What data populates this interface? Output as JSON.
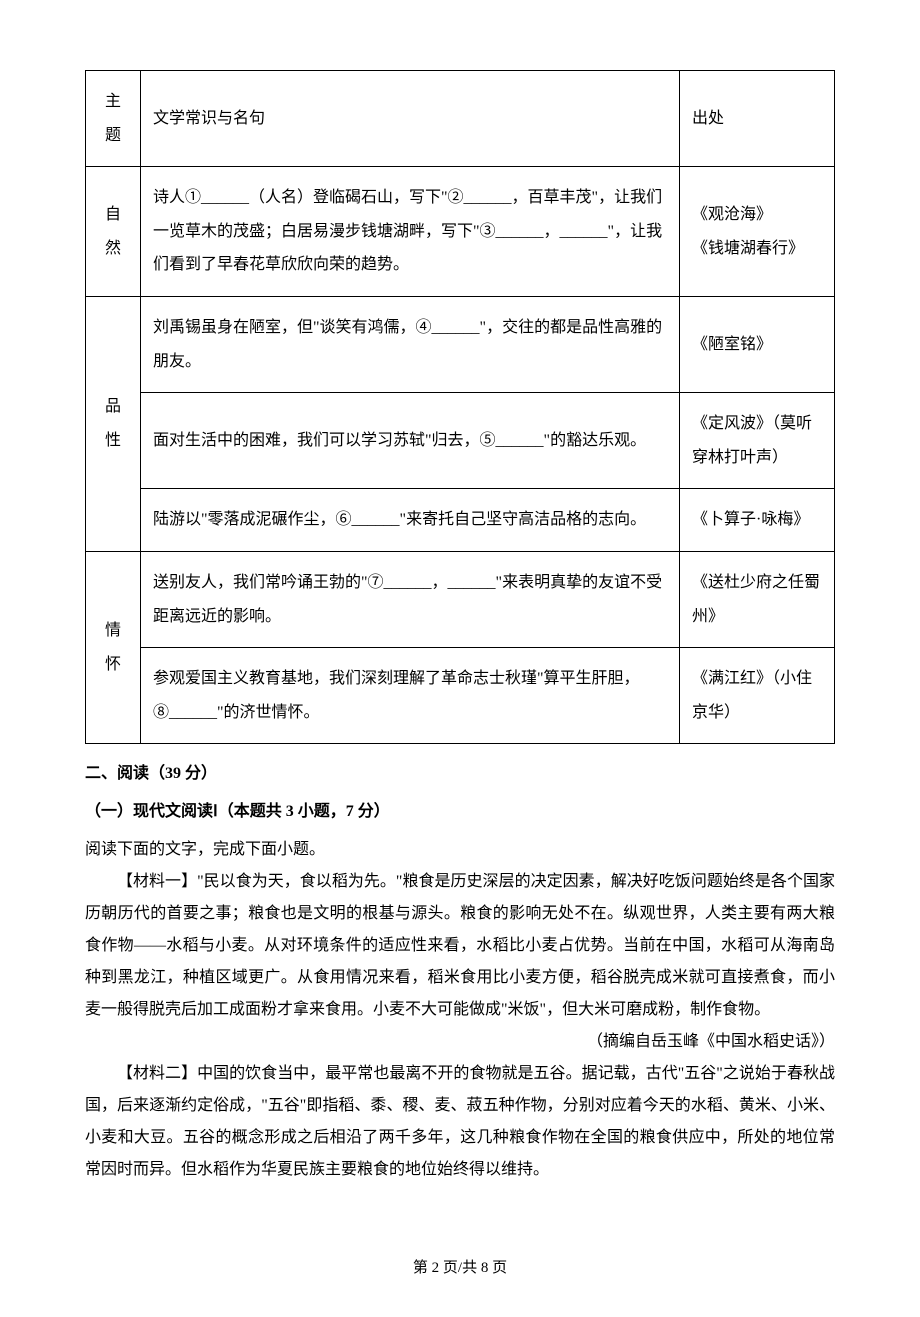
{
  "table": {
    "headers": {
      "theme": "主题",
      "content": "文学常识与名句",
      "source": "出处"
    },
    "groups": [
      {
        "theme": "自然",
        "rows": [
          {
            "content": "诗人①______（人名）登临碣石山，写下\"②______，百草丰茂\"，让我们一览草木的茂盛；白居易漫步钱塘湖畔，写下\"③______，______\"，让我们看到了早春花草欣欣向荣的趋势。",
            "source": "《观沧海》\n《钱塘湖春行》"
          }
        ]
      },
      {
        "theme": "品性",
        "rows": [
          {
            "content": "刘禹锡虽身在陋室，但\"谈笑有鸿儒，④______\"，交往的都是品性高雅的朋友。",
            "source": "《陋室铭》"
          },
          {
            "content": "面对生活中的困难，我们可以学习苏轼\"归去，⑤______\"的豁达乐观。",
            "source": "《定风波》（莫听穿林打叶声）"
          },
          {
            "content": "陆游以\"零落成泥碾作尘，⑥______\"来寄托自己坚守高洁品格的志向。",
            "source": "《卜算子·咏梅》"
          }
        ]
      },
      {
        "theme": "情怀",
        "rows": [
          {
            "content": "送别友人，我们常吟诵王勃的\"⑦______，______\"来表明真挚的友谊不受距离远近的影响。",
            "source": "《送杜少府之任蜀州》"
          },
          {
            "content": "参观爱国主义教育基地，我们深刻理解了革命志士秋瑾\"算平生肝胆，⑧______\"的济世情怀。",
            "source": "《满江红》（小住京华）"
          }
        ]
      }
    ]
  },
  "section2_title": "二、阅读（39 分）",
  "subsection1_title": "（一）现代文阅读Ⅰ（本题共 3 小题，7 分）",
  "prompt": "阅读下面的文字，完成下面小题。",
  "material1": "【材料一】\"民以食为天，食以稻为先。\"粮食是历史深层的决定因素，解决好吃饭问题始终是各个国家历朝历代的首要之事；粮食也是文明的根基与源头。粮食的影响无处不在。纵观世界，人类主要有两大粮食作物——水稻与小麦。从对环境条件的适应性来看，水稻比小麦占优势。当前在中国，水稻可从海南岛种到黑龙江，种植区域更广。从食用情况来看，稻米食用比小麦方便，稻谷脱壳成米就可直接煮食，而小麦一般得脱壳后加工成面粉才拿来食用。小麦不大可能做成\"米饭\"，但大米可磨成粉，制作食物。",
  "material1_source": "（摘编自岳玉峰《中国水稻史话》）",
  "material2": "【材料二】中国的饮食当中，最平常也最离不开的食物就是五谷。据记载，古代\"五谷\"之说始于春秋战国，后来逐渐约定俗成，\"五谷\"即指稻、黍、稷、麦、菽五种作物，分别对应着今天的水稻、黄米、小米、小麦和大豆。五谷的概念形成之后相沿了两千多年，这几种粮食作物在全国的粮食供应中，所处的地位常常因时而异。但水稻作为华夏民族主要粮食的地位始终得以维持。",
  "page_footer": "第 2 页/共 8 页"
}
